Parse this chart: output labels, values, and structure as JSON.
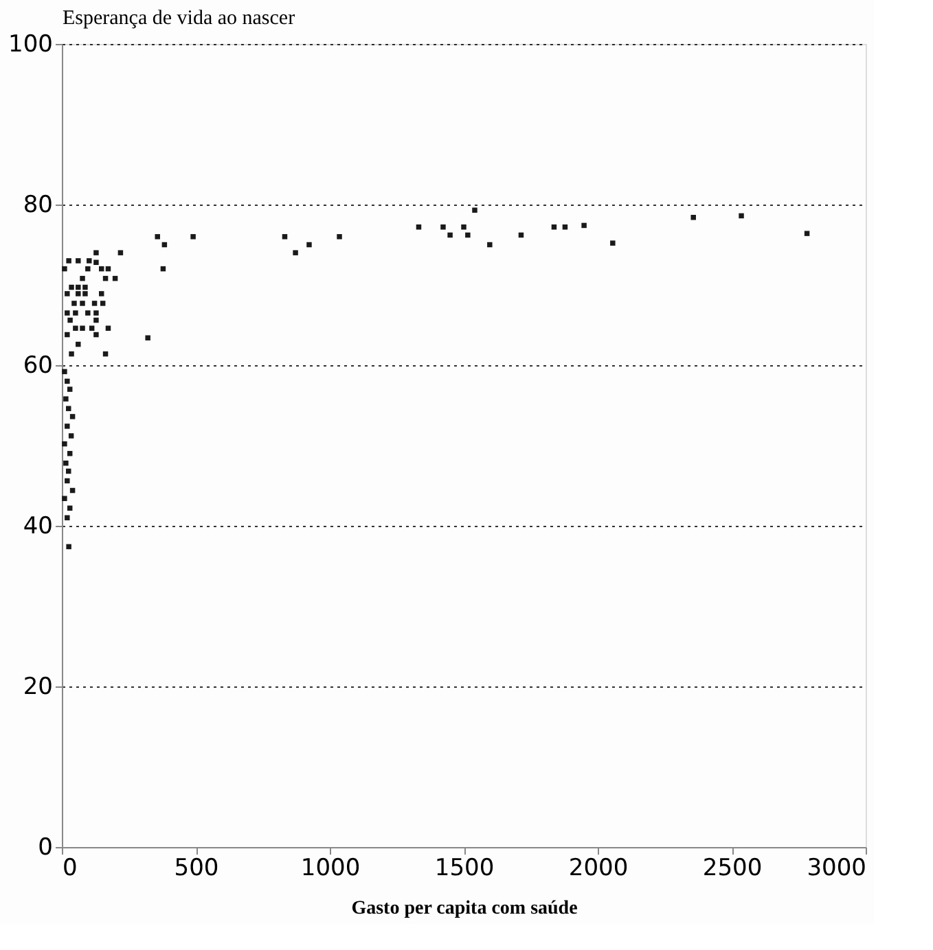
{
  "chart_data": {
    "type": "scatter",
    "ylabel": "Esperança de vida ao nascer",
    "xlabel": "Gasto per capita com saúde",
    "x": [
      832,
      872,
      923,
      1036,
      1332,
      1423,
      1449,
      1500,
      1515,
      1541,
      1597,
      1714,
      1837,
      1878,
      1949,
      2056,
      2357,
      2536,
      2781,
      357,
      383,
      378,
      321,
      219,
      490,
      128,
      26,
      61,
      102,
      128,
      10,
      97,
      148,
      173,
      199,
      163,
      77,
      36,
      61,
      87,
      20,
      61,
      87,
      148,
      46,
      77,
      122,
      153,
      20,
      51,
      97,
      128,
      31,
      128,
      51,
      77,
      112,
      173,
      20,
      128,
      61,
      36,
      163,
      10,
      20,
      30,
      15,
      25,
      40,
      20,
      35,
      10,
      30,
      15,
      25,
      20,
      40,
      10,
      30,
      20,
      26
    ],
    "series": [
      {
        "color": "#1a1a1a",
        "values": [
          76,
          74,
          75,
          76,
          77.2,
          77.2,
          76.2,
          77.2,
          76.2,
          79.3,
          75,
          76.2,
          77.2,
          77.2,
          77.4,
          75.2,
          78.4,
          78.6,
          76.4,
          76,
          75,
          72,
          63.4,
          74,
          76,
          74,
          73,
          73,
          73,
          72.8,
          72,
          72,
          72,
          72,
          70.8,
          70.8,
          70.8,
          69.7,
          69.7,
          69.7,
          68.9,
          68.9,
          68.9,
          68.9,
          67.7,
          67.7,
          67.7,
          67.7,
          66.5,
          66.5,
          66.5,
          66.5,
          65.6,
          65.6,
          64.6,
          64.6,
          64.6,
          64.6,
          63.8,
          63.8,
          62.6,
          61.4,
          61.4,
          59.2,
          58,
          57,
          55.8,
          54.6,
          53.6,
          52.4,
          51.2,
          50.2,
          49,
          47.8,
          46.8,
          45.6,
          44.4,
          43.4,
          42.2,
          41,
          37.4
        ]
      }
    ],
    "xlim": [
      0,
      3000
    ],
    "xticks": [
      0,
      500,
      1000,
      1500,
      2000,
      2500,
      3000
    ],
    "ylim": [
      0,
      100
    ],
    "yticks": [
      0,
      20,
      40,
      60,
      80,
      100
    ],
    "grid": "y",
    "marker": "square",
    "legend": false
  }
}
